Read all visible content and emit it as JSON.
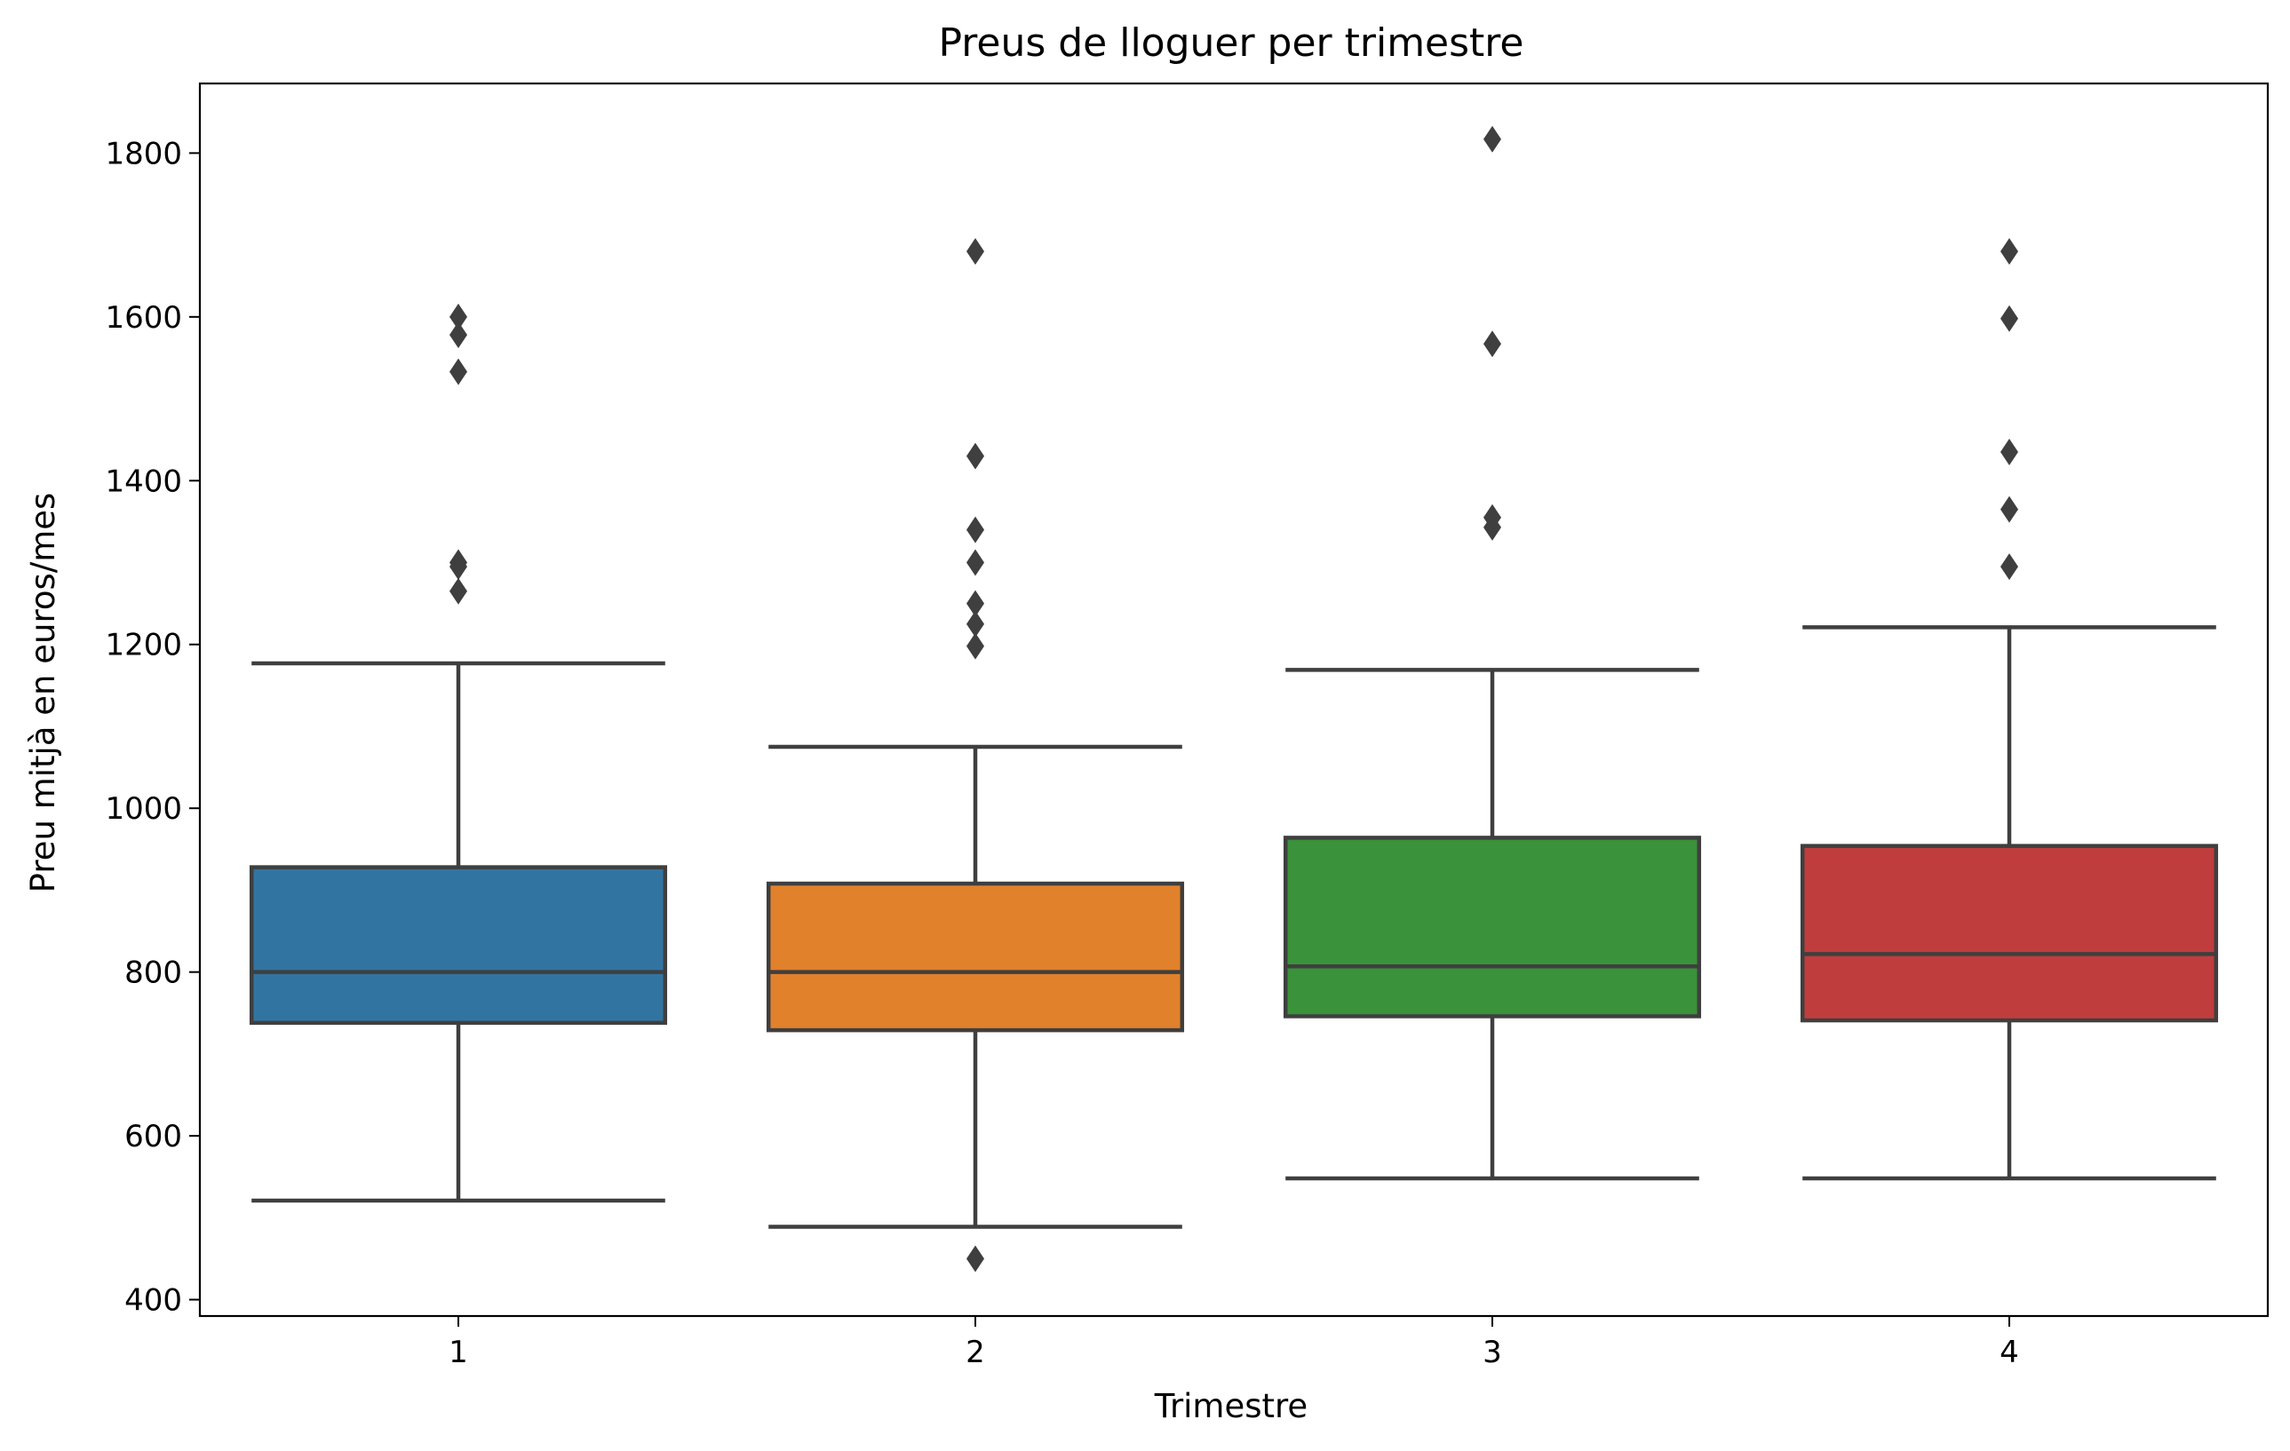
{
  "chart_data": {
    "type": "box",
    "title": "Preus de lloguer per trimestre",
    "xlabel": "Trimestre",
    "ylabel": "Preu mitjà en euros/mes",
    "ylim": [
      380,
      1885
    ],
    "yticks": [
      400,
      600,
      800,
      1000,
      1200,
      1400,
      1600,
      1800
    ],
    "categories": [
      "1",
      "2",
      "3",
      "4"
    ],
    "grid": false,
    "legend": "none",
    "boxes": [
      {
        "category": "1",
        "color": "#3274a1",
        "whisker_low": 521,
        "q1": 738,
        "median": 800,
        "q3": 928,
        "whisker_high": 1177,
        "outliers": [
          1600,
          1578,
          1533,
          1300,
          1295,
          1265
        ]
      },
      {
        "category": "2",
        "color": "#e1812c",
        "whisker_low": 489,
        "q1": 729,
        "median": 800,
        "q3": 908,
        "whisker_high": 1075,
        "outliers": [
          1680,
          1430,
          1340,
          1300,
          1250,
          1225,
          1198,
          450
        ]
      },
      {
        "category": "3",
        "color": "#3a923a",
        "whisker_low": 548,
        "q1": 746,
        "median": 807,
        "q3": 964,
        "whisker_high": 1169,
        "outliers": [
          1817,
          1567,
          1355,
          1343
        ]
      },
      {
        "category": "4",
        "color": "#c03d3e",
        "whisker_low": 548,
        "q1": 741,
        "median": 822,
        "q3": 954,
        "whisker_high": 1221,
        "outliers": [
          1680,
          1598,
          1435,
          1365,
          1295
        ]
      }
    ]
  }
}
